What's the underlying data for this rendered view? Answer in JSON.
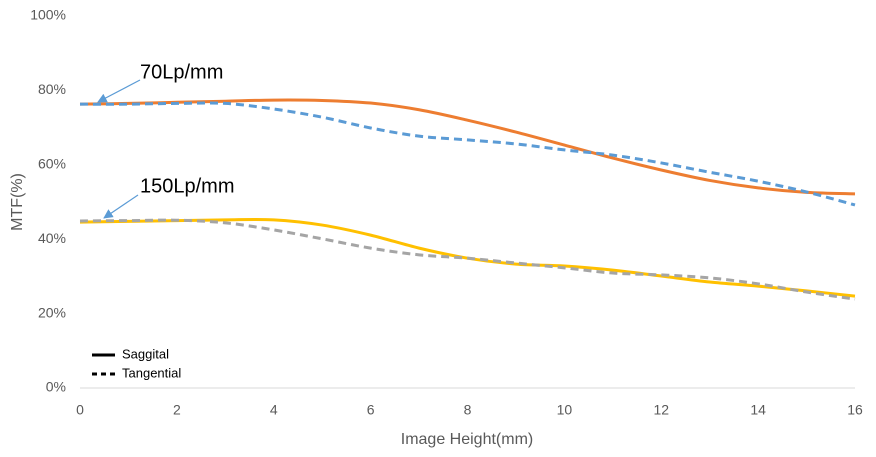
{
  "chart_data": {
    "type": "line",
    "x_label": "Image Height(mm)",
    "y_label": "MTF(%)",
    "x": [
      0,
      1,
      2,
      3,
      4,
      5,
      6,
      7,
      8,
      9,
      10,
      11,
      12,
      13,
      14,
      15,
      16
    ],
    "xlim": [
      0,
      16
    ],
    "xticks": [
      0,
      2,
      4,
      6,
      8,
      10,
      12,
      14,
      16
    ],
    "ylim": [
      0,
      100
    ],
    "yticks": [
      {
        "value": 0,
        "label": "0%"
      },
      {
        "value": 20,
        "label": "20%"
      },
      {
        "value": 40,
        "label": "40%"
      },
      {
        "value": 60,
        "label": "60%"
      },
      {
        "value": 80,
        "label": "80%"
      },
      {
        "value": 100,
        "label": "100%"
      }
    ],
    "grid": false,
    "series": [
      {
        "color": "#ed7d31",
        "style": "solid",
        "values": [
          76.3,
          76.5,
          76.8,
          77.1,
          77.4,
          77.3,
          76.6,
          74.8,
          72,
          68.8,
          65.3,
          61.8,
          58.6,
          55.8,
          53.8,
          52.6,
          52.2
        ]
      },
      {
        "color": "#5b9bd5",
        "style": "dashed",
        "values": [
          76.3,
          76.3,
          76.5,
          76.5,
          75,
          72.8,
          69.9,
          67.7,
          66.7,
          65.6,
          64,
          62.6,
          60.5,
          58,
          55.6,
          52.7,
          49.2
        ]
      },
      {
        "color": "#ffc000",
        "style": "solid",
        "values": [
          44.6,
          44.8,
          45,
          45.2,
          45.2,
          43.8,
          41.1,
          37.6,
          34.9,
          33.3,
          32.8,
          31.7,
          30.1,
          28.5,
          27.4,
          26.1,
          24.7
        ]
      },
      {
        "color": "#a5a5a5",
        "style": "dashed",
        "values": [
          44.9,
          45,
          45.1,
          44.4,
          42.5,
          40.1,
          37.6,
          35.8,
          34.9,
          33.6,
          32.3,
          30.9,
          30.4,
          29.6,
          28,
          25.8,
          23.9
        ]
      }
    ],
    "legend": [
      {
        "name": "Saggital",
        "style": "solid"
      },
      {
        "name": "Tangential",
        "style": "dashed"
      }
    ],
    "annotations": [
      "70Lp/mm",
      "150Lp/mm"
    ]
  }
}
